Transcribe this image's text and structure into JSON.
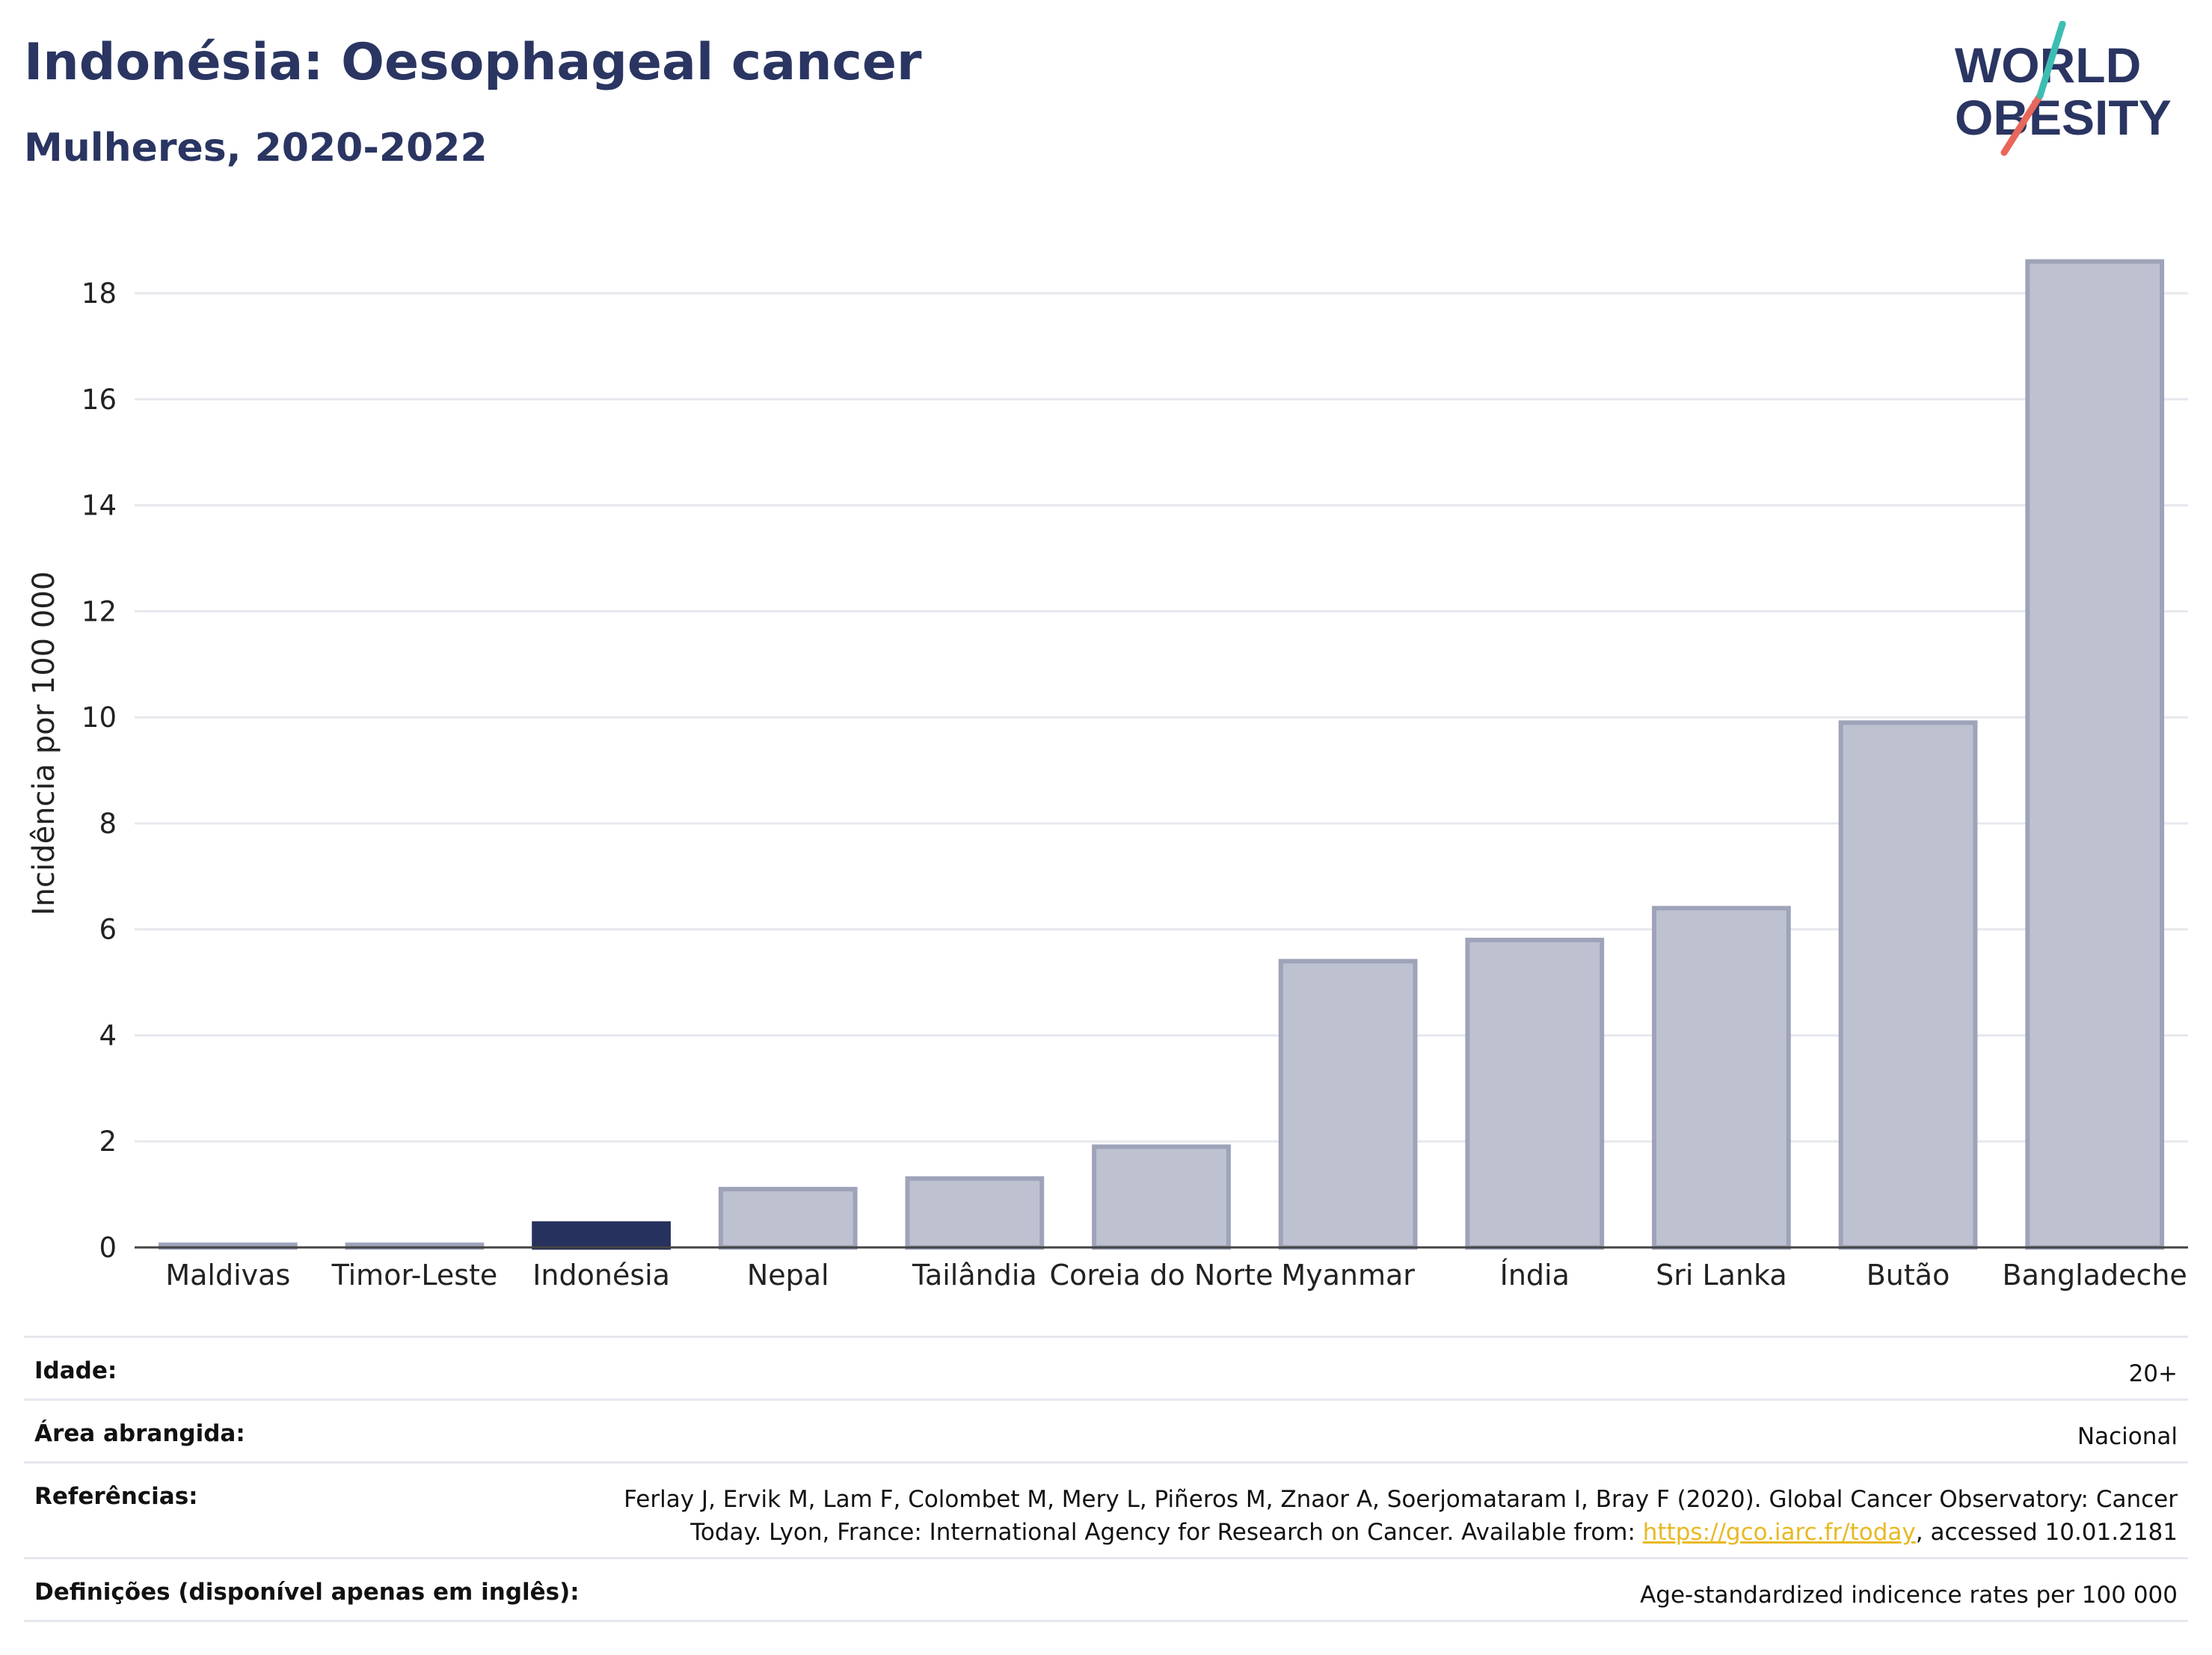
{
  "header": {
    "title": "Indonésia: Oesophageal cancer",
    "subtitle": "Mulheres, 2020-2022"
  },
  "logo": {
    "line1": "WORLD",
    "line2": "OBESITY",
    "accent_teal": "#3dbdb2",
    "accent_red": "#e8675a",
    "text_color": "#2a3562"
  },
  "chart_data": {
    "type": "bar",
    "ylabel": "Incidência por 100 000",
    "xlabel": "",
    "ylim": [
      0,
      19.3
    ],
    "yticks": [
      0,
      2,
      4,
      6,
      8,
      10,
      12,
      14,
      16,
      18
    ],
    "grid": true,
    "categories": [
      "Maldivas",
      "Timor-Leste",
      "Indonésia",
      "Nepal",
      "Tailândia",
      "Coreia do Norte",
      "Myanmar",
      "Índia",
      "Sri Lanka",
      "Butão",
      "Bangladeche"
    ],
    "values": [
      0.05,
      0.05,
      0.45,
      1.1,
      1.3,
      1.9,
      5.4,
      5.8,
      6.4,
      9.9,
      18.6
    ],
    "highlight": "Indonésia",
    "highlight_color": "#27315e",
    "bar_color": "#bec2d0",
    "bar_edge_color": "#9ea3b9"
  },
  "meta": {
    "age_label": "Idade:",
    "age_value": "20+",
    "area_label": "Área abrangida:",
    "area_value": "Nacional",
    "ref_label": "Referências:",
    "ref_text_1": "Ferlay J, Ervik M, Lam F, Colombet M, Mery L, Piñeros M, Znaor A, Soerjomataram I, Bray F (2020). Global Cancer Observatory: Cancer",
    "ref_text_2a": "Today. Lyon, France: International Agency for Research on Cancer. Available from: ",
    "ref_link": "https://gco.iarc.fr/today",
    "ref_text_2b": ", accessed 10.01.2181",
    "def_label": "Definições (disponível apenas em inglês):",
    "def_value": "Age-standardized indicence rates per 100 000"
  }
}
